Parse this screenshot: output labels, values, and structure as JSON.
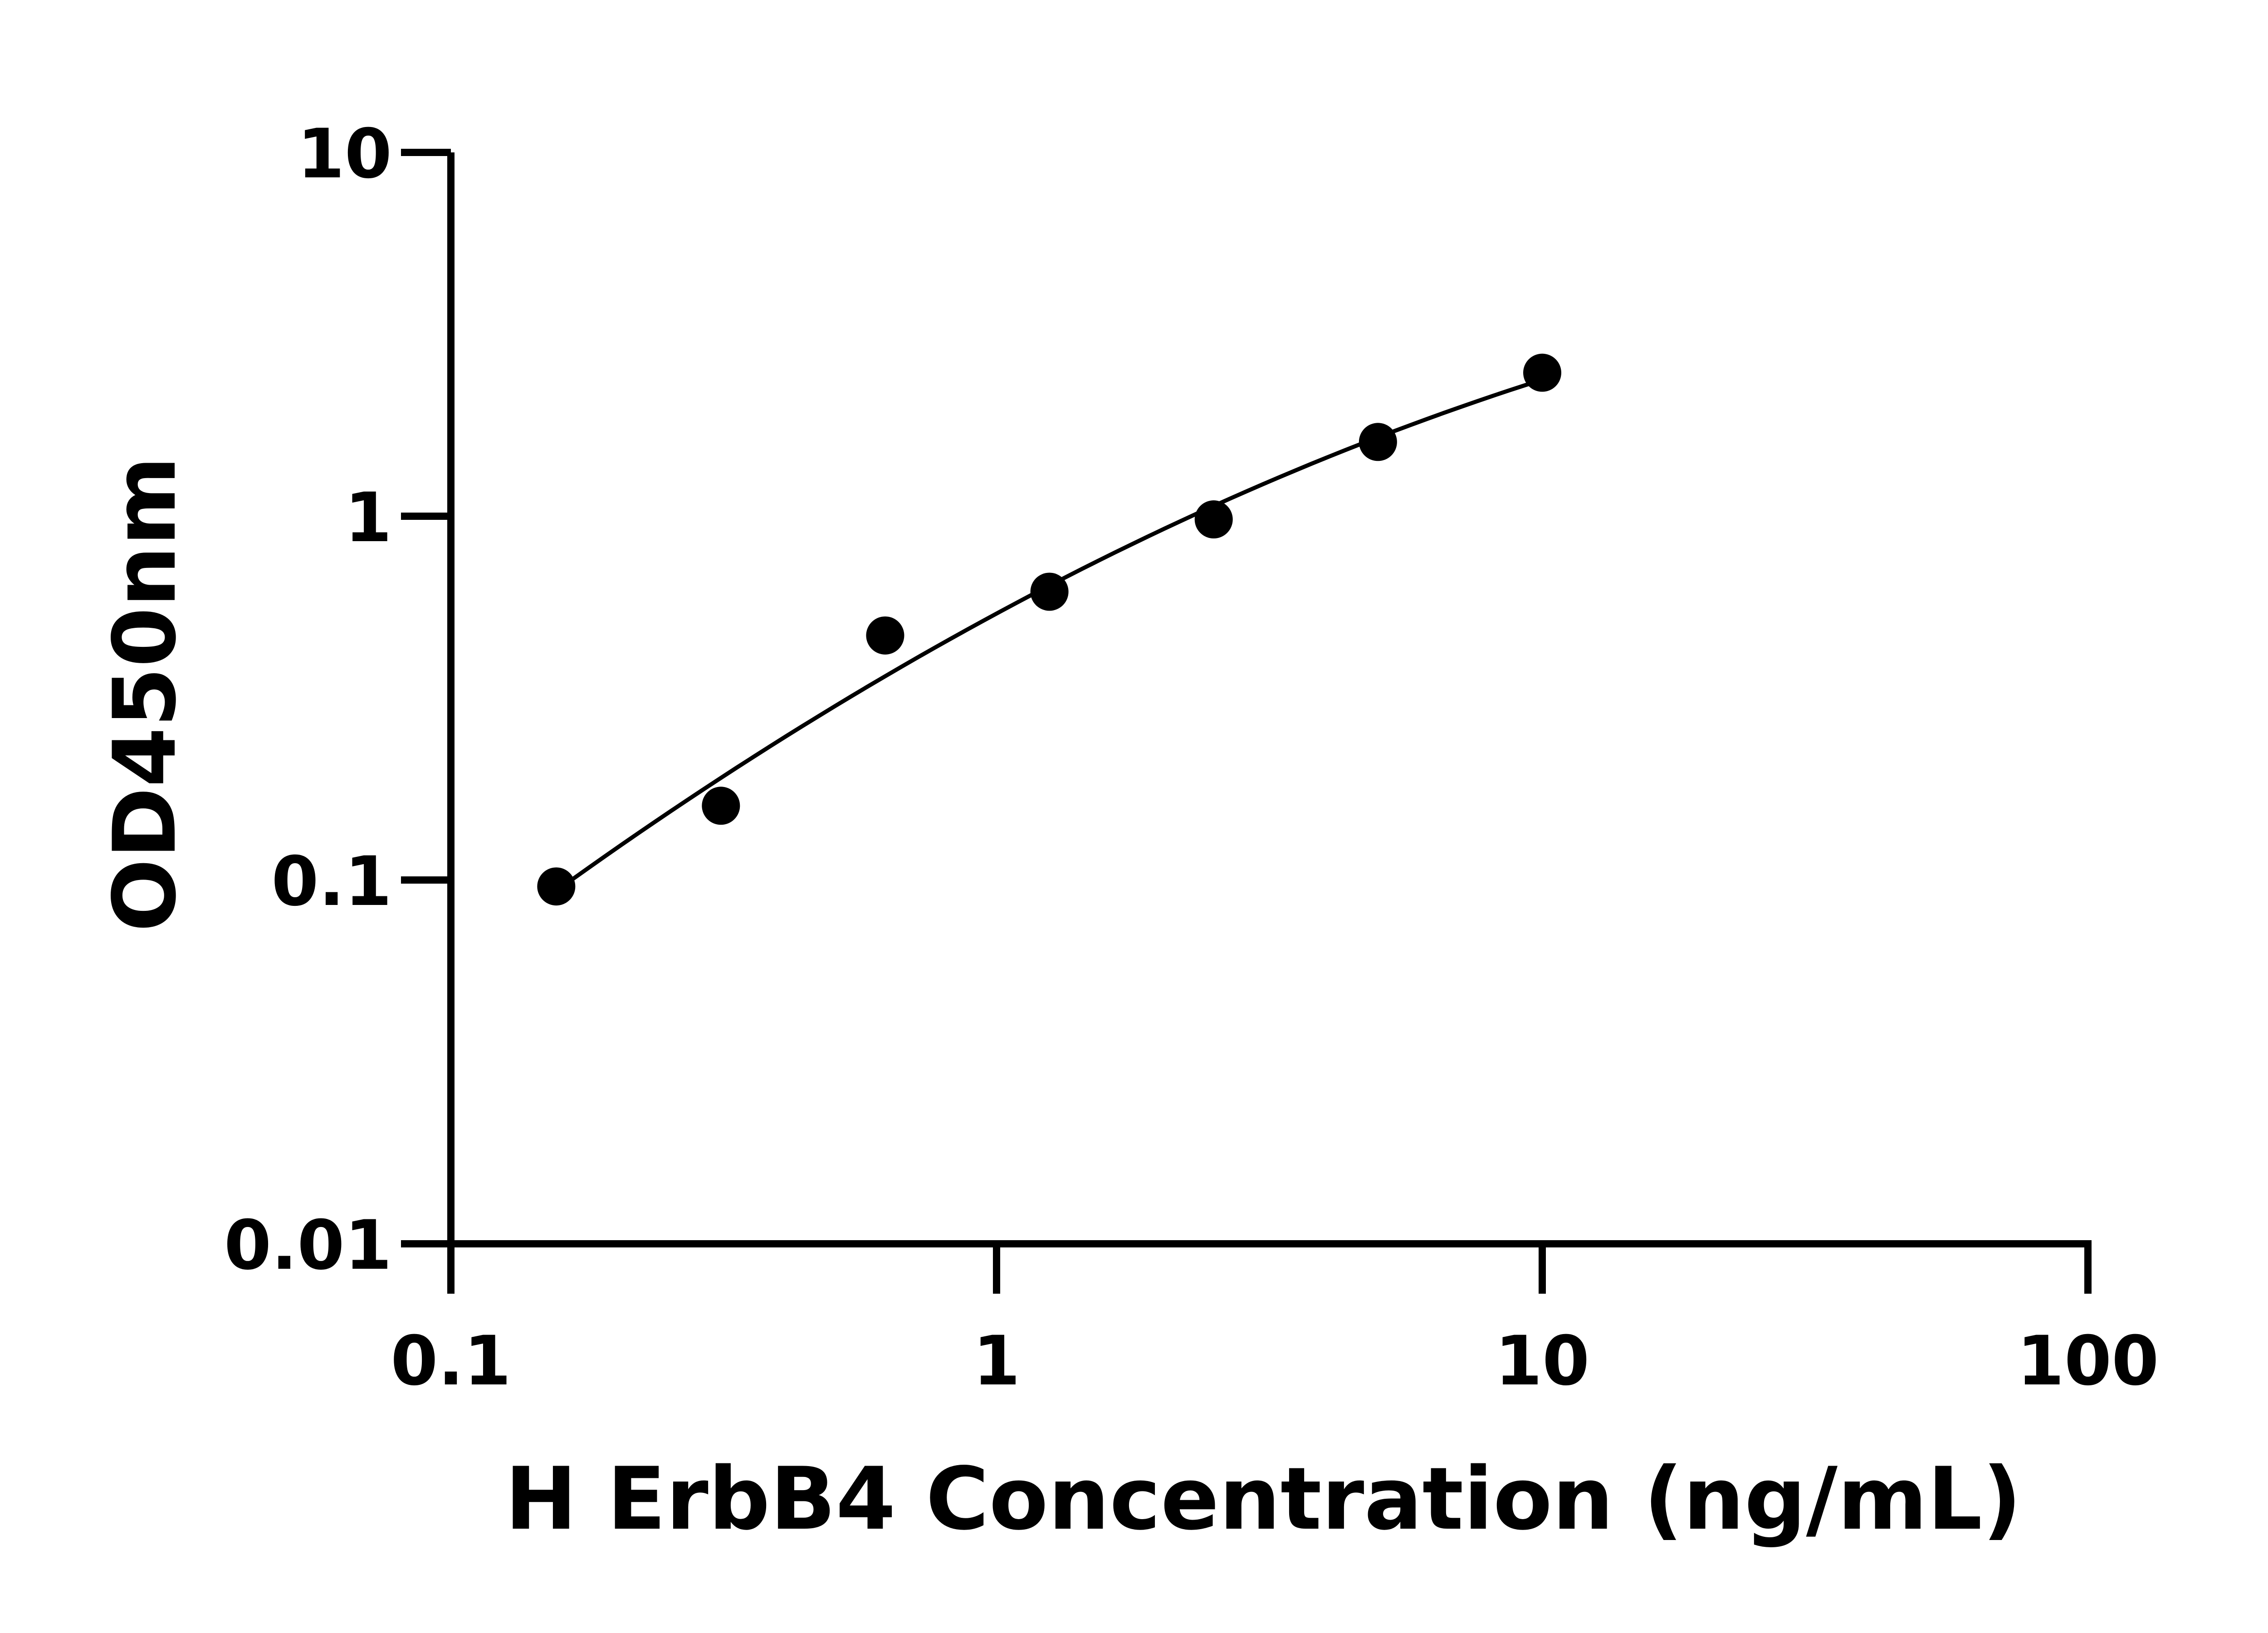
{
  "chart_data": {
    "type": "scatter",
    "title": "",
    "xlabel": "H ErbB4 Concentration (ng/mL)",
    "ylabel": "OD450nm",
    "x_scale": "log",
    "y_scale": "log",
    "xlim": [
      0.1,
      100
    ],
    "ylim": [
      0.01,
      10
    ],
    "x_ticks": [
      "0.1",
      "1",
      "10",
      "100"
    ],
    "y_ticks": [
      "0.01",
      "0.1",
      "1",
      "10"
    ],
    "grid": false,
    "legend": "none",
    "fit_line": true,
    "x": [
      0.156,
      0.3125,
      0.625,
      1.25,
      2.5,
      5,
      10
    ],
    "y": [
      0.096,
      0.16,
      0.47,
      0.62,
      0.98,
      1.6,
      2.48
    ],
    "marker_color": "#000000",
    "line_color": "#000000"
  }
}
